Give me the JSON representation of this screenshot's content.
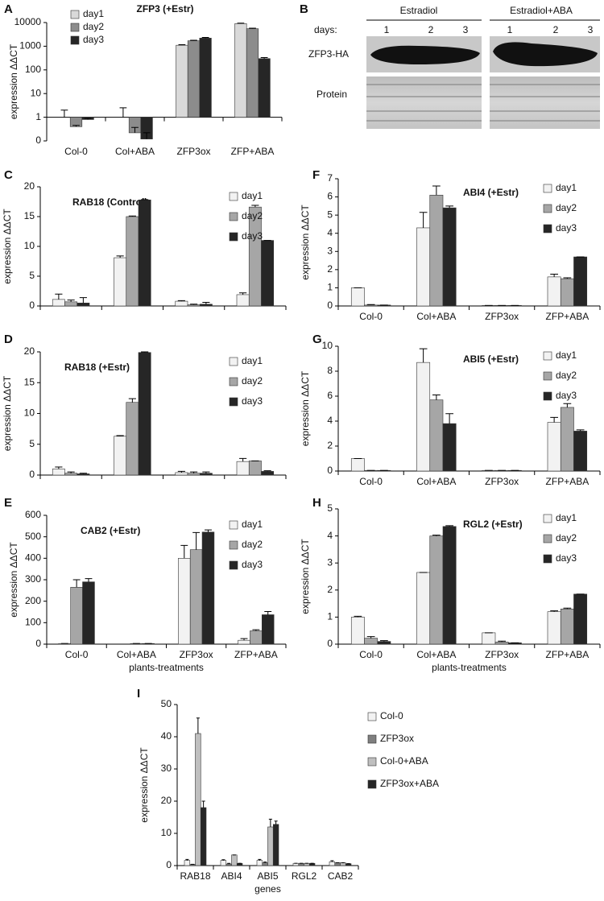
{
  "blot": {
    "panel_label": "B",
    "days_label": "days:",
    "groups": [
      {
        "name": "Estradiol",
        "days": [
          "1",
          "2",
          "3"
        ]
      },
      {
        "name": "Estradiol+ABA",
        "days": [
          "1",
          "2",
          "3"
        ]
      }
    ],
    "rows": [
      "ZFP3-HA",
      "Protein"
    ]
  },
  "chart_data": [
    {
      "type": "bar",
      "panel_label": "A",
      "title": "ZFP3 (+Estr)",
      "ylabel": "expression ΔΔCT",
      "log": true,
      "legend": "upper left",
      "categories": [
        "Col-0",
        "Col+ABA",
        "ZFP3ox",
        "ZFP+ABA"
      ],
      "ylim": [
        0.1,
        10000
      ],
      "yticks": [
        {
          "value": 0.1,
          "label": "0"
        },
        1,
        10,
        100,
        1000,
        10000
      ],
      "series": [
        {
          "name": "day1",
          "color": "#d9d9d9",
          "values": [
            1,
            1,
            1100,
            9000
          ],
          "errors": [
            1,
            1.5,
            60,
            400
          ]
        },
        {
          "name": "day2",
          "color": "#8c8c8c",
          "values": [
            0.4,
            0.22,
            1700,
            5500
          ],
          "errors": [
            0.05,
            0.15,
            80,
            300
          ]
        },
        {
          "name": "day3",
          "color": "#262626",
          "values": [
            0.8,
            0.12,
            2200,
            300
          ],
          "errors": [
            0.1,
            0.1,
            150,
            30
          ]
        }
      ]
    },
    {
      "type": "bar",
      "panel_label": "C",
      "title": "RAB18 (Control)",
      "ylabel": "expression ΔΔCT",
      "legend": "upper right",
      "categories": [
        null,
        null,
        null,
        null
      ],
      "ylim": [
        0,
        20
      ],
      "yticks": [
        0,
        5,
        10,
        15,
        20
      ],
      "series": [
        {
          "name": "day1",
          "color": "#f2f2f2",
          "values": [
            1.1,
            8.1,
            0.8,
            1.9
          ],
          "errors": [
            0.9,
            0.3,
            0.1,
            0.3
          ]
        },
        {
          "name": "day2",
          "color": "#a6a6a6",
          "values": [
            0.7,
            15.0,
            0.2,
            16.6
          ],
          "errors": [
            0.3,
            0.1,
            0.1,
            0.3
          ]
        },
        {
          "name": "day3",
          "color": "#262626",
          "values": [
            0.5,
            17.8,
            0.3,
            11.0
          ],
          "errors": [
            0.9,
            0.05,
            0.3,
            0
          ]
        }
      ]
    },
    {
      "type": "bar",
      "panel_label": "D",
      "title": "RAB18 (+Estr)",
      "ylabel": "expression ΔΔCT",
      "legend": "upper right",
      "categories": [
        null,
        null,
        null,
        null
      ],
      "ylim": [
        0,
        20
      ],
      "yticks": [
        0,
        5,
        10,
        15,
        20
      ],
      "series": [
        {
          "name": "day1",
          "color": "#f2f2f2",
          "values": [
            1.0,
            6.3,
            0.4,
            2.2
          ],
          "errors": [
            0.3,
            0.1,
            0.2,
            0.5
          ]
        },
        {
          "name": "day2",
          "color": "#a6a6a6",
          "values": [
            0.3,
            11.8,
            0.3,
            2.3
          ],
          "errors": [
            0.2,
            0.6,
            0.2,
            0
          ]
        },
        {
          "name": "day3",
          "color": "#262626",
          "values": [
            0.2,
            19.9,
            0.3,
            0.6
          ],
          "errors": [
            0.1,
            0.1,
            0.2,
            0.1
          ]
        }
      ]
    },
    {
      "type": "bar",
      "panel_label": "E",
      "title": "CAB2 (+Estr)",
      "ylabel": "expression ΔΔCT",
      "xlabel": "plants-treatments",
      "legend": "upper right",
      "categories": [
        "Col-0",
        "Col+ABA",
        "ZFP3ox",
        "ZFP+ABA"
      ],
      "ylim": [
        0,
        600
      ],
      "yticks": [
        0,
        100,
        200,
        300,
        400,
        500,
        600
      ],
      "series": [
        {
          "name": "day1",
          "color": "#f2f2f2",
          "values": [
            3,
            0,
            400,
            18
          ],
          "errors": [
            0,
            0,
            60,
            8
          ]
        },
        {
          "name": "day2",
          "color": "#a6a6a6",
          "values": [
            265,
            3,
            440,
            62
          ],
          "errors": [
            35,
            0,
            80,
            5
          ]
        },
        {
          "name": "day3",
          "color": "#262626",
          "values": [
            290,
            3,
            522,
            137
          ],
          "errors": [
            15,
            0,
            10,
            15
          ]
        }
      ]
    },
    {
      "type": "bar",
      "panel_label": "F",
      "title": "ABI4 (+Estr)",
      "ylabel": "expression ΔΔCT",
      "legend": "upper right",
      "categories": [
        "Col-0",
        "Col+ABA",
        "ZFP3ox",
        "ZFP+ABA"
      ],
      "ylim": [
        0,
        7
      ],
      "yticks": [
        0,
        1,
        2,
        3,
        4,
        5,
        6,
        7
      ],
      "series": [
        {
          "name": "day1",
          "color": "#f2f2f2",
          "values": [
            1.0,
            4.3,
            0.03,
            1.6
          ],
          "errors": [
            0,
            0.85,
            0,
            0.15
          ]
        },
        {
          "name": "day2",
          "color": "#a6a6a6",
          "values": [
            0.05,
            6.1,
            0.03,
            1.5
          ],
          "errors": [
            0.03,
            0.5,
            0,
            0.05
          ]
        },
        {
          "name": "day3",
          "color": "#262626",
          "values": [
            0.05,
            5.4,
            0.03,
            2.7
          ],
          "errors": [
            0,
            0.1,
            0,
            0
          ]
        }
      ]
    },
    {
      "type": "bar",
      "panel_label": "G",
      "title": "ABI5 (+Estr)",
      "ylabel": "expression ΔΔCT",
      "legend": "upper right",
      "categories": [
        "Col-0",
        "Col+ABA",
        "ZFP3ox",
        "ZFP+ABA"
      ],
      "ylim": [
        0,
        10
      ],
      "yticks": [
        0,
        2,
        4,
        6,
        8,
        10
      ],
      "series": [
        {
          "name": "day1",
          "color": "#f2f2f2",
          "values": [
            1.0,
            8.7,
            0.05,
            3.9
          ],
          "errors": [
            0,
            1.1,
            0,
            0.4
          ]
        },
        {
          "name": "day2",
          "color": "#a6a6a6",
          "values": [
            0.05,
            5.7,
            0.05,
            5.1
          ],
          "errors": [
            0,
            0.4,
            0,
            0.3
          ]
        },
        {
          "name": "day3",
          "color": "#262626",
          "values": [
            0.05,
            3.8,
            0.05,
            3.2
          ],
          "errors": [
            0,
            0.8,
            0,
            0.1
          ]
        }
      ]
    },
    {
      "type": "bar",
      "panel_label": "H",
      "title": "RGL2 (+Estr)",
      "ylabel": "expression ΔΔCT",
      "xlabel": "plants-treatments",
      "legend": "upper right",
      "categories": [
        "Col-0",
        "Col+ABA",
        "ZFP3ox",
        "ZFP+ABA"
      ],
      "ylim": [
        0,
        5
      ],
      "yticks": [
        0,
        1,
        2,
        3,
        4,
        5
      ],
      "series": [
        {
          "name": "day1",
          "color": "#f2f2f2",
          "values": [
            1.0,
            2.65,
            0.42,
            1.2
          ],
          "errors": [
            0.03,
            0,
            0,
            0.03
          ]
        },
        {
          "name": "day2",
          "color": "#a6a6a6",
          "values": [
            0.22,
            4.0,
            0.08,
            1.3
          ],
          "errors": [
            0.06,
            0.03,
            0.03,
            0.03
          ]
        },
        {
          "name": "day3",
          "color": "#262626",
          "values": [
            0.1,
            4.35,
            0.05,
            1.85
          ],
          "errors": [
            0.03,
            0.03,
            0,
            0
          ]
        }
      ]
    },
    {
      "type": "bar",
      "panel_label": "I",
      "ylabel": "expression ΔΔCT",
      "xlabel": "genes",
      "legend": "right",
      "categories": [
        "RAB18",
        "ABI4",
        "ABI5",
        "RGL2",
        "CAB2"
      ],
      "ylim": [
        0,
        50
      ],
      "yticks": [
        0,
        10,
        20,
        30,
        40,
        50
      ],
      "series": [
        {
          "name": "Col-0",
          "color": "#f2f2f2",
          "values": [
            1.6,
            1.6,
            1.6,
            0.7,
            1.2
          ],
          "errors": [
            0.3,
            0.2,
            0.3,
            0,
            0.3
          ]
        },
        {
          "name": "ZFP3ox",
          "color": "#7f7f7f",
          "values": [
            0.4,
            0.5,
            0.9,
            0.7,
            0.9
          ],
          "errors": [
            0,
            0.2,
            0.2,
            0,
            0
          ]
        },
        {
          "name": "Col-0+ABA",
          "color": "#bfbfbf",
          "values": [
            41,
            3.3,
            12,
            0.7,
            0.9
          ],
          "errors": [
            4.8,
            0,
            2.4,
            0,
            0
          ]
        },
        {
          "name": "ZFP3ox+ABA",
          "color": "#262626",
          "values": [
            18,
            0.7,
            12.8,
            0.7,
            0.6
          ],
          "errors": [
            2,
            0,
            1,
            0,
            0
          ]
        }
      ]
    }
  ]
}
